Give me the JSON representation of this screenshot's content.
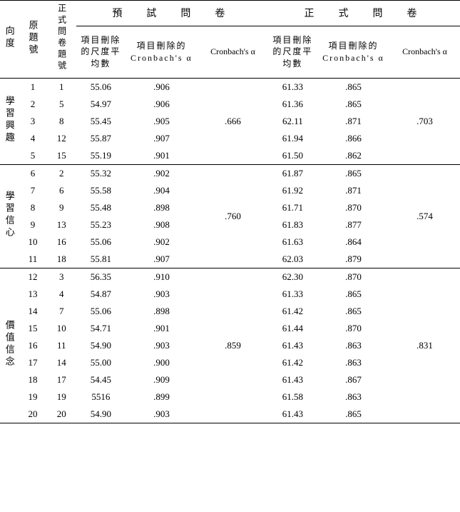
{
  "colors": {
    "text": "#000000",
    "background": "#ffffff",
    "border": "#000000"
  },
  "typography": {
    "body_font": "Times New Roman / DFKai-SB",
    "body_size_pt": 10,
    "header_size_pt": 11
  },
  "headers": {
    "dimension": "向度",
    "orig_q": "原題號",
    "formal_q": "正式問卷題號",
    "pre_group": "預　試　問　卷",
    "formal_group": "正　式　問　卷",
    "mean_if_deleted": "項目刪除的尺度平均數",
    "cronbach_if_deleted": "項目刪除的Cronbach's α",
    "cronbach": "Cronbach's α"
  },
  "sections": [
    {
      "name": "學習興趣",
      "pre_alpha": ".666",
      "formal_alpha": ".703",
      "rows": [
        {
          "q": "1",
          "fq": "1",
          "pm": "55.06",
          "pc": ".906",
          "fm": "61.33",
          "fc": ".865"
        },
        {
          "q": "2",
          "fq": "5",
          "pm": "54.97",
          "pc": ".906",
          "fm": "61.36",
          "fc": ".865"
        },
        {
          "q": "3",
          "fq": "8",
          "pm": "55.45",
          "pc": ".905",
          "fm": "62.11",
          "fc": ".871"
        },
        {
          "q": "4",
          "fq": "12",
          "pm": "55.87",
          "pc": ".907",
          "fm": "61.94",
          "fc": ".866"
        },
        {
          "q": "5",
          "fq": "15",
          "pm": "55.19",
          "pc": ".901",
          "fm": "61.50",
          "fc": ".862"
        }
      ]
    },
    {
      "name": "學習信心",
      "pre_alpha": ".760",
      "formal_alpha": ".574",
      "rows": [
        {
          "q": "6",
          "fq": "2",
          "pm": "55.32",
          "pc": ".902",
          "fm": "61.87",
          "fc": ".865"
        },
        {
          "q": "7",
          "fq": "6",
          "pm": "55.58",
          "pc": ".904",
          "fm": "61.92",
          "fc": ".871"
        },
        {
          "q": "8",
          "fq": "9",
          "pm": "55.48",
          "pc": ".898",
          "fm": "61.71",
          "fc": ".870"
        },
        {
          "q": "9",
          "fq": "13",
          "pm": "55.23",
          "pc": ".908",
          "fm": "61.83",
          "fc": ".877"
        },
        {
          "q": "10",
          "fq": "16",
          "pm": "55.06",
          "pc": ".902",
          "fm": "61.63",
          "fc": ".864"
        },
        {
          "q": "11",
          "fq": "18",
          "pm": "55.81",
          "pc": ".907",
          "fm": "62.03",
          "fc": ".879"
        }
      ]
    },
    {
      "name": "價值信念",
      "pre_alpha": ".859",
      "formal_alpha": ".831",
      "rows": [
        {
          "q": "12",
          "fq": "3",
          "pm": "56.35",
          "pc": ".910",
          "fm": "62.30",
          "fc": ".870"
        },
        {
          "q": "13",
          "fq": "4",
          "pm": "54.87",
          "pc": ".903",
          "fm": "61.33",
          "fc": ".865"
        },
        {
          "q": "14",
          "fq": "7",
          "pm": "55.06",
          "pc": ".898",
          "fm": "61.42",
          "fc": ".865"
        },
        {
          "q": "15",
          "fq": "10",
          "pm": "54.71",
          "pc": ".901",
          "fm": "61.44",
          "fc": ".870"
        },
        {
          "q": "16",
          "fq": "11",
          "pm": "54.90",
          "pc": ".903",
          "fm": "61.43",
          "fc": ".863"
        },
        {
          "q": "17",
          "fq": "14",
          "pm": "55.00",
          "pc": ".900",
          "fm": "61.42",
          "fc": ".863"
        },
        {
          "q": "18",
          "fq": "17",
          "pm": "54.45",
          "pc": ".909",
          "fm": "61.43",
          "fc": ".867"
        },
        {
          "q": "19",
          "fq": "19",
          "pm": "5516",
          "pc": ".899",
          "fm": "61.58",
          "fc": ".863"
        },
        {
          "q": "20",
          "fq": "20",
          "pm": "54.90",
          "pc": ".903",
          "fm": "61.43",
          "fc": ".865"
        }
      ]
    }
  ]
}
